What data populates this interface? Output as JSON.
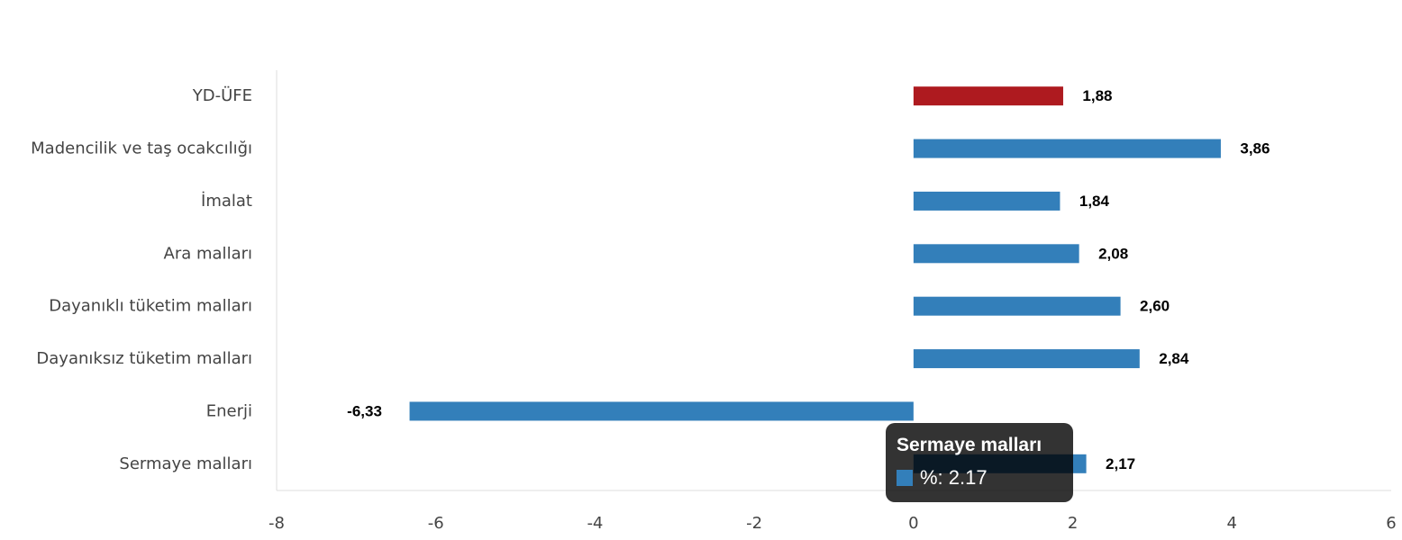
{
  "chart_data": {
    "type": "bar",
    "orientation": "horizontal",
    "categories": [
      "YD-ÜFE",
      "Madencilik ve taş ocakcılığı",
      "İmalat",
      "Ara malları",
      "Dayanıklı tüketim malları",
      "Dayanıksız tüketim malları",
      "Enerji",
      "Sermaye malları"
    ],
    "values": [
      1.88,
      3.86,
      1.84,
      2.08,
      2.6,
      2.84,
      -6.33,
      2.17
    ],
    "data_labels": [
      "1,88",
      "3,86",
      "1,84",
      "2,08",
      "2,60",
      "2,84",
      "-6,33",
      "2,17"
    ],
    "colors": [
      "#ae1a1f",
      "#337fba",
      "#337fba",
      "#337fba",
      "#337fba",
      "#337fba",
      "#337fba",
      "#337fba"
    ],
    "xlim": [
      -8,
      6
    ],
    "xticks": [
      -8,
      -6,
      -4,
      -2,
      0,
      2,
      4,
      6
    ],
    "title": "",
    "xlabel": "",
    "ylabel": "",
    "grid": false,
    "legend": "none"
  },
  "tooltip": {
    "title": "Sermaye malları",
    "value_text": "%: 2.17",
    "swatch_color": "#337fba"
  }
}
